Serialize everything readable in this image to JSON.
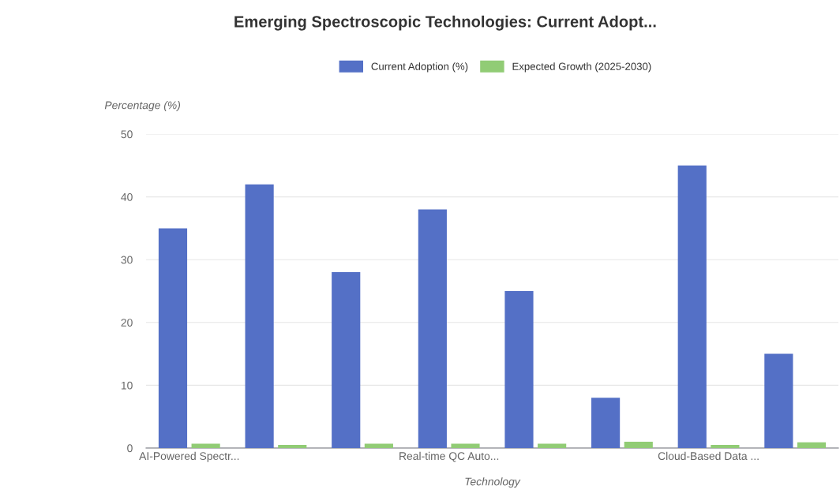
{
  "chart_data": {
    "type": "bar",
    "title": "Emerging Spectroscopic Technologies: Current Adopt...",
    "xlabel": "Technology",
    "ylabel": "Percentage (%)",
    "categories": [
      "AI-Powered Spectr...",
      null,
      null,
      "Real-time QC Auto...",
      null,
      null,
      "Cloud-Based Data ...",
      null
    ],
    "series": [
      {
        "name": "Current Adoption (%)",
        "color": "#5470c6",
        "values": [
          35,
          42,
          28,
          38,
          25,
          8,
          45,
          15
        ]
      },
      {
        "name": "Expected Growth (2025-2030)",
        "color": "#91cc75",
        "values": [
          0.7,
          0.5,
          0.7,
          0.7,
          0.7,
          1,
          0.5,
          0.9
        ]
      }
    ],
    "ylim": [
      0,
      50
    ],
    "yticks": [
      0,
      10,
      20,
      30,
      40,
      50
    ],
    "grid": "y",
    "legend": "top"
  }
}
